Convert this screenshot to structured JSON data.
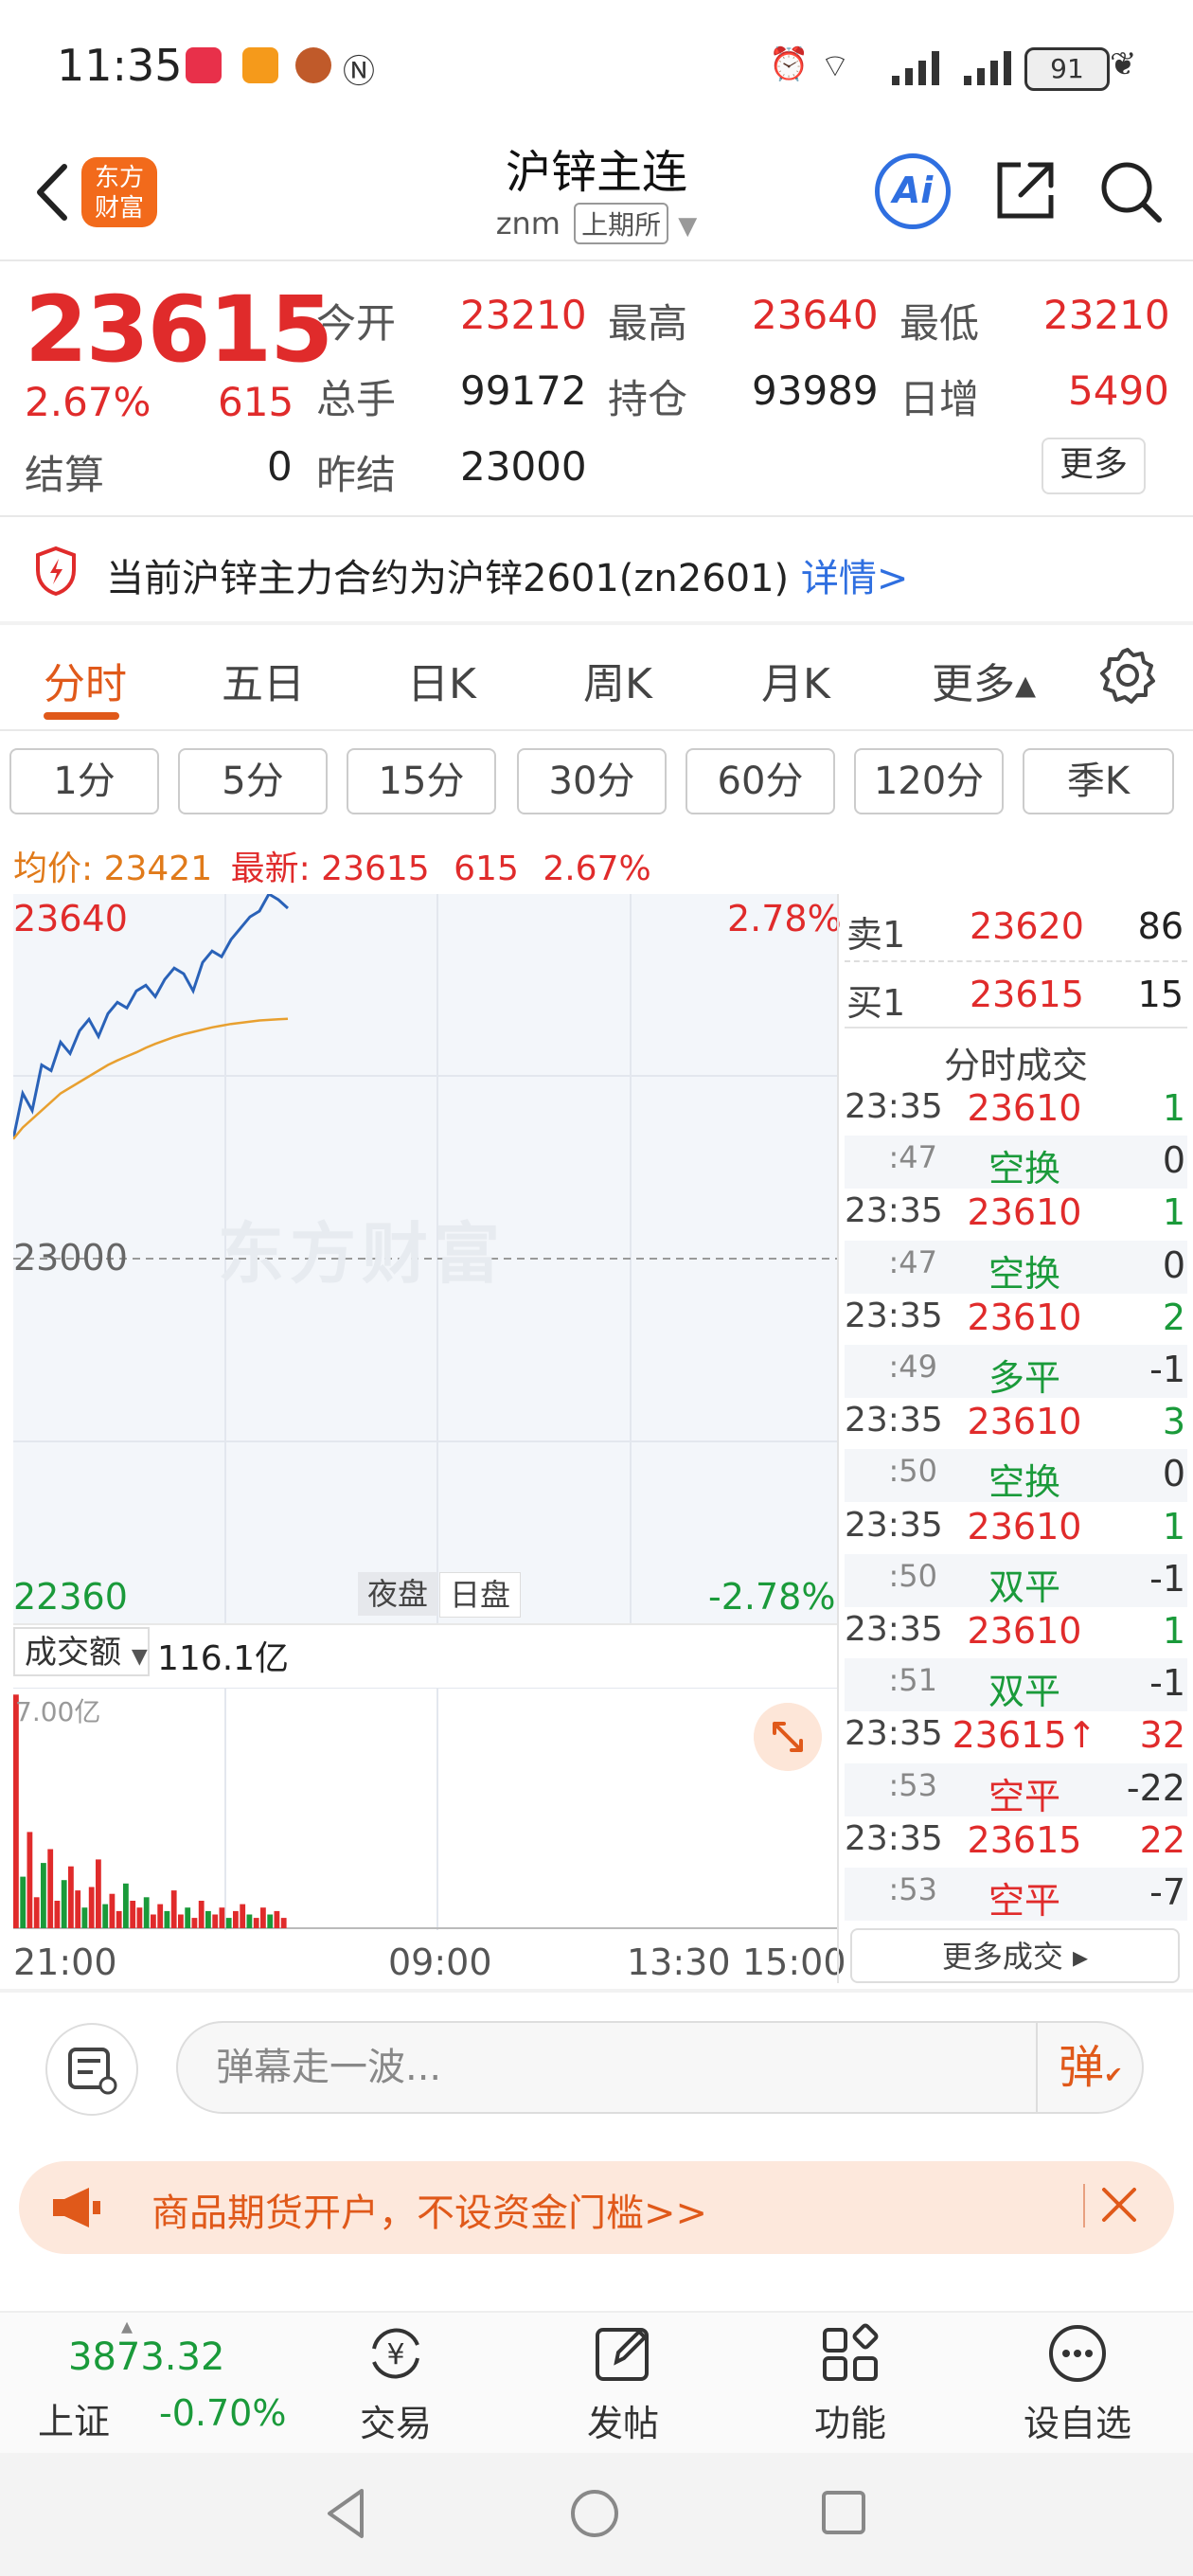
{
  "status_bar": {
    "time": "11:35",
    "battery": "91"
  },
  "header": {
    "logo_line1": "东方",
    "logo_line2": "财富",
    "title": "沪锌主连",
    "code": "znm",
    "exchange": "上期所",
    "ai_label": "Ai"
  },
  "quote": {
    "price": "23615",
    "change_pct": "2.67%",
    "change": "615",
    "settle_label": "结算",
    "settle_value": "0",
    "open_label": "今开",
    "open_value": "23210",
    "high_label": "最高",
    "high_value": "23640",
    "low_label": "最低",
    "low_value": "23210",
    "volume_label": "总手",
    "volume_value": "99172",
    "oi_label": "持仓",
    "oi_value": "93989",
    "daily_inc_label": "日增",
    "daily_inc_value": "5490",
    "prev_settle_label": "昨结",
    "prev_settle_value": "23000",
    "more_label": "更多"
  },
  "notice": {
    "text": "当前沪锌主力合约为沪锌2601(zn2601)",
    "link": "详情>"
  },
  "tabs": [
    "分时",
    "五日",
    "日K",
    "周K",
    "月K",
    "更多▴"
  ],
  "periods": [
    "1分",
    "5分",
    "15分",
    "30分",
    "60分",
    "120分",
    "季K"
  ],
  "avg_bar": {
    "avg_label": "均价:",
    "avg_value": "23421",
    "latest_label": "最新:",
    "latest_value": "23615",
    "latest_change": "615",
    "latest_pct": "2.67%"
  },
  "chart": {
    "y_top": "23640",
    "y_mid": "23000",
    "y_bottom": "22360",
    "pct_top": "2.78%",
    "pct_bottom": "-2.78%",
    "watermark": "东方财富",
    "session_night": "夜盘",
    "session_day": "日盘",
    "vol_select": "成交额",
    "vol_total": "116.1亿",
    "vol_max": "7.00亿",
    "time_labels": [
      "21:00",
      "09:00",
      "13:30",
      "15:00"
    ]
  },
  "chart_data": {
    "type": "line",
    "ylim": [
      22360,
      23640
    ],
    "series": [
      {
        "name": "price",
        "values": [
          23210,
          23290,
          23260,
          23340,
          23330,
          23380,
          23360,
          23400,
          23420,
          23390,
          23430,
          23450,
          23440,
          23470,
          23480,
          23460,
          23490,
          23510,
          23500,
          23470,
          23520,
          23540,
          23530,
          23560,
          23580,
          23600,
          23610,
          23640,
          23630,
          23615
        ]
      },
      {
        "name": "avg",
        "values": [
          23210,
          23230,
          23245,
          23260,
          23275,
          23290,
          23300,
          23310,
          23320,
          23330,
          23340,
          23348,
          23355,
          23362,
          23370,
          23377,
          23383,
          23389,
          23394,
          23398,
          23402,
          23406,
          23409,
          23412,
          23414,
          23416,
          23418,
          23419,
          23420,
          23421
        ]
      }
    ],
    "volume_values": [
      6.8,
      1.5,
      2.8,
      0.9,
      1.9,
      2.3,
      0.8,
      1.4,
      1.8,
      1.1,
      0.6,
      1.2,
      2.0,
      0.7,
      1.0,
      0.5,
      1.3,
      0.8,
      0.6,
      0.9,
      0.4,
      0.7,
      0.5,
      1.1,
      0.4,
      0.6,
      0.3,
      0.8,
      0.5,
      0.4,
      0.6,
      0.3,
      0.5,
      0.7,
      0.4,
      0.3,
      0.6,
      0.4,
      0.5,
      0.3
    ]
  },
  "orderbook": {
    "sell_label": "卖1",
    "sell_price": "23620",
    "sell_vol": "86",
    "buy_label": "买1",
    "buy_price": "23615",
    "buy_vol": "15",
    "ticks_title": "分时成交"
  },
  "ticks": [
    {
      "time": "23:35",
      "price": "23610",
      "vol": "1",
      "type": "main"
    },
    {
      "time": ":47",
      "price": "空换",
      "vol": "0",
      "type": "sub"
    },
    {
      "time": "23:35",
      "price": "23610",
      "vol": "1",
      "type": "main"
    },
    {
      "time": ":47",
      "price": "空换",
      "vol": "0",
      "type": "sub"
    },
    {
      "time": "23:35",
      "price": "23610",
      "vol": "2",
      "type": "main"
    },
    {
      "time": ":49",
      "price": "多平",
      "vol": "-1",
      "type": "sub"
    },
    {
      "time": "23:35",
      "price": "23610",
      "vol": "3",
      "type": "main"
    },
    {
      "time": ":50",
      "price": "空换",
      "vol": "0",
      "type": "sub"
    },
    {
      "time": "23:35",
      "price": "23610",
      "vol": "1",
      "type": "main"
    },
    {
      "time": ":50",
      "price": "双平",
      "vol": "-1",
      "type": "sub"
    },
    {
      "time": "23:35",
      "price": "23610",
      "vol": "1",
      "type": "main"
    },
    {
      "time": ":51",
      "price": "双平",
      "vol": "-1",
      "type": "sub"
    },
    {
      "time": "23:35",
      "price": "23615↑",
      "vol": "32",
      "type": "main"
    },
    {
      "time": ":53",
      "price": "空平",
      "vol": "-22",
      "type": "sub"
    },
    {
      "time": "23:35",
      "price": "23615",
      "vol": "22",
      "type": "main"
    },
    {
      "time": ":53",
      "price": "空平",
      "vol": "-7",
      "type": "sub"
    }
  ],
  "more_trades": "更多成交 ▸",
  "comment": {
    "placeholder": "弹幕走一波...",
    "danmu": "弹"
  },
  "promo": {
    "text": "商品期货开户，不设资金门槛>>"
  },
  "bottom_nav": {
    "index_value": "3873.32",
    "index_name": "上证",
    "index_change": "-0.70%",
    "items": [
      "交易",
      "发帖",
      "功能",
      "设自选"
    ]
  },
  "colors": {
    "up": "#e02b2b",
    "down": "#1a9a3a",
    "accent": "#e0591a",
    "price_line": "#2a62b8",
    "avg_line": "#e8a030"
  }
}
